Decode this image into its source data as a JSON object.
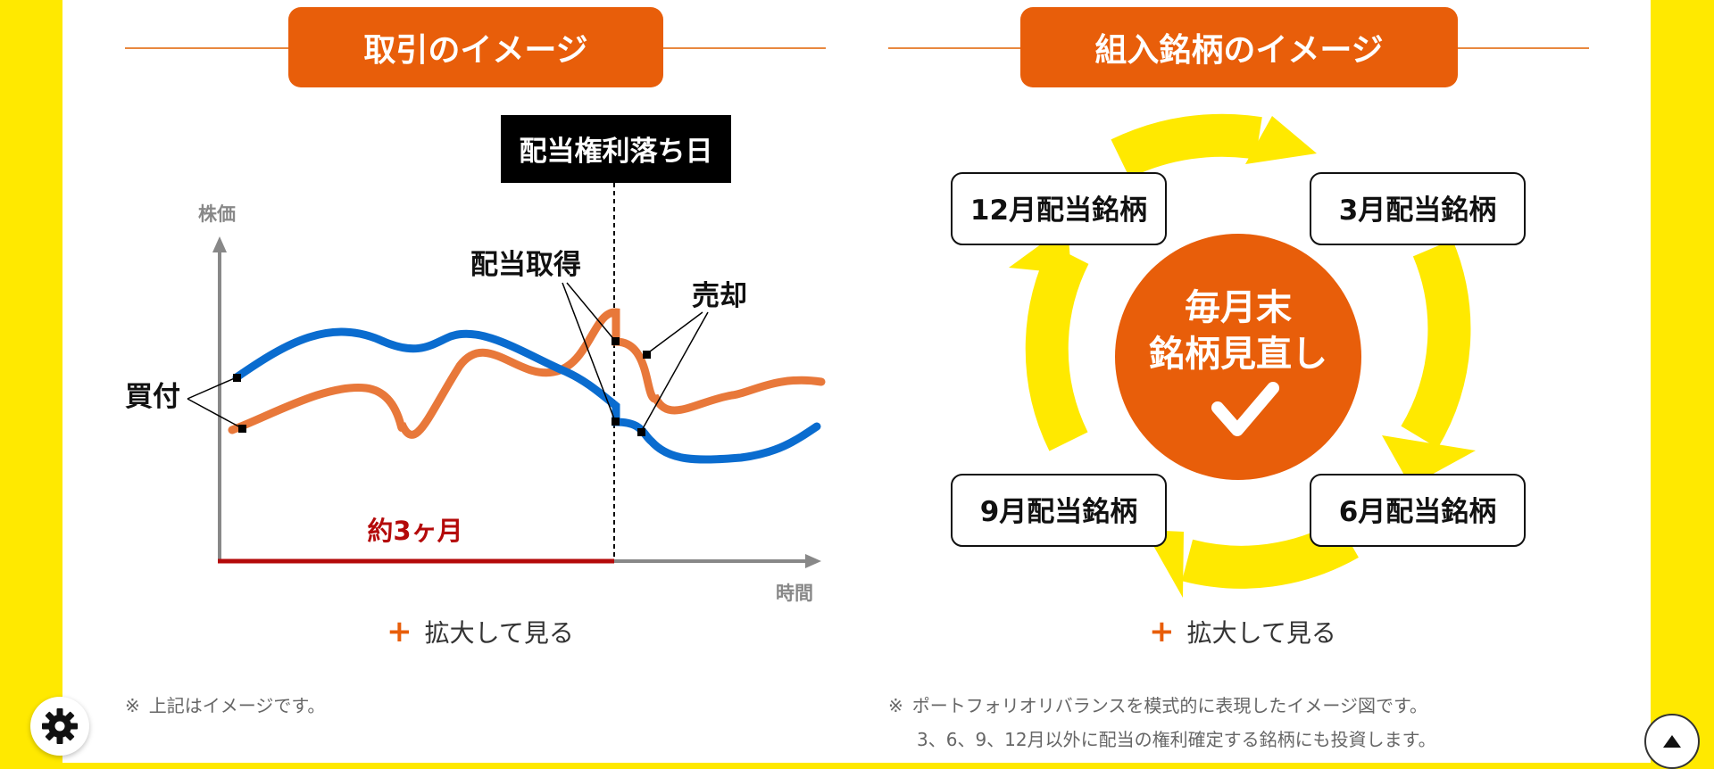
{
  "left_section": {
    "heading": "取引のイメージ",
    "label_ex_dividend": "配当権利落ち日",
    "y_axis_label": "株価",
    "x_axis_label": "時間",
    "label_buy": "買付",
    "label_dividend": "配当取得",
    "label_sell": "売却",
    "label_period": "約3ヶ月",
    "enlarge_label": "拡大して見る",
    "note_mark": "※",
    "note": "上記はイメージです。"
  },
  "right_section": {
    "heading": "組入銘柄のイメージ",
    "center_line1": "毎月末",
    "center_line2": "銘柄見直し",
    "box_dec": "12月配当銘柄",
    "box_mar": "3月配当銘柄",
    "box_jun": "6月配当銘柄",
    "box_sep": "9月配当銘柄",
    "enlarge_label": "拡大して見る",
    "note_mark": "※",
    "note_line1": "ポートフォリオリバランスを模式的に表現したイメージ図です。",
    "note_line2": "3、6、9、12月以外に配当の権利確定する銘柄にも投資します。"
  },
  "icons": {
    "settings": "gear-icon",
    "back_to_top": "arrow-up-icon",
    "enlarge": "plus-icon",
    "check": "check-icon"
  },
  "colors": {
    "background": "#FFE900",
    "accent_orange": "#E85E0A",
    "line_orange": "#E8783A",
    "line_blue": "#0A6CCF",
    "arrow_yellow": "#FFE900",
    "period_red": "#B40A0A"
  }
}
